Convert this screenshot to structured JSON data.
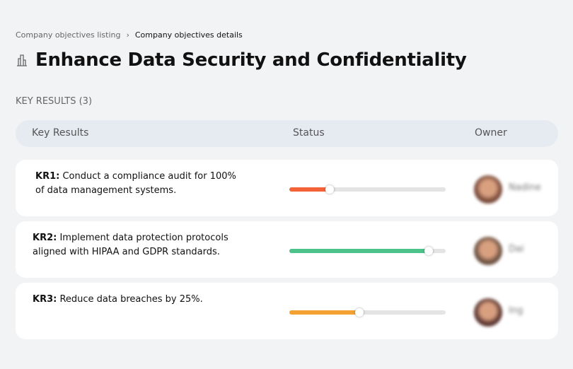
{
  "breadcrumb": {
    "items": [
      "Company objectives listing",
      "Company objectives details"
    ],
    "separator": "›"
  },
  "page": {
    "icon": "building-icon",
    "title": "Enhance Data Security and Confidentiality"
  },
  "key_results_count": "KEY RESULTS (3)",
  "table": {
    "headers": [
      "Key Results",
      "Status",
      "Owner"
    ]
  },
  "rows": [
    {
      "code": "KR1:",
      "text": "Conduct a compliance audit for 100% of data management systems.",
      "progress": 26,
      "color": "#f4623a",
      "owner": "Nadine",
      "avatar": "#7a4a3a"
    },
    {
      "code": "KR2:",
      "text": "Implement data protection protocols aligned with HIPAA and GDPR standards.",
      "progress": 89,
      "color": "#4cc38a",
      "owner": "Dai",
      "avatar": "#6b5040"
    },
    {
      "code": "KR3:",
      "text": "Reduce data breaches by 25%.",
      "progress": 45,
      "color": "#f5a132",
      "owner": "Ing",
      "avatar": "#5a3530"
    }
  ]
}
